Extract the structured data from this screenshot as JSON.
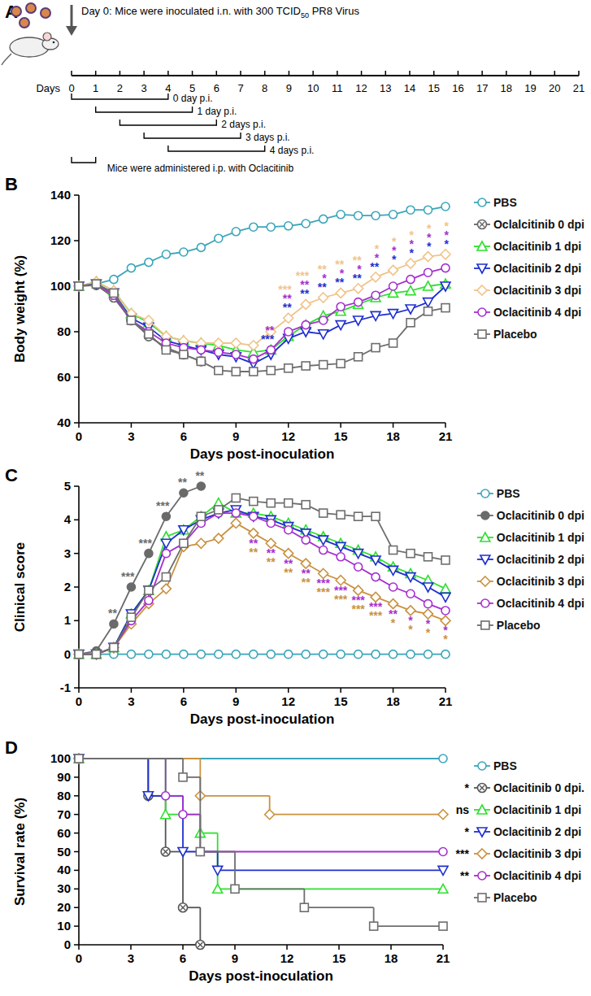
{
  "diagram": {
    "panel": "A",
    "header": "Day 0: Mice were inoculated i.n. with 300 TCID",
    "header_subscript": "50",
    "header_end": " PR8 Virus",
    "axis_label": "Days",
    "days": [
      0,
      1,
      2,
      3,
      4,
      5,
      6,
      7,
      8,
      9,
      10,
      11,
      12,
      13,
      14,
      15,
      16,
      17,
      18,
      19,
      20,
      21
    ],
    "windows": [
      {
        "start": 0,
        "end": 4,
        "label": "0 day p.i."
      },
      {
        "start": 1,
        "end": 5,
        "label": "1 day p.i."
      },
      {
        "start": 2,
        "end": 6,
        "label": "2 days p.i."
      },
      {
        "start": 3,
        "end": 7,
        "label": "3 days p.i."
      },
      {
        "start": 4,
        "end": 8,
        "label": "4 days p.i."
      }
    ],
    "administration": {
      "start": 0,
      "end": 1,
      "label": "Mice were administered i.p. with Oclacitinib"
    }
  },
  "chart_data": [
    {
      "type": "line",
      "panel": "B",
      "ylabel": "Body weight (%)",
      "xlabel": "Days post-inoculation",
      "legend": "right",
      "grid": false,
      "x": [
        0,
        1,
        2,
        3,
        4,
        5,
        6,
        7,
        8,
        9,
        10,
        11,
        12,
        13,
        14,
        15,
        16,
        17,
        18,
        19,
        20,
        21
      ],
      "xlim": [
        0,
        21
      ],
      "xticks": [
        0,
        3,
        6,
        9,
        12,
        15,
        18,
        21
      ],
      "ylim": [
        40,
        140
      ],
      "yticks": [
        40,
        60,
        80,
        100,
        120,
        140
      ],
      "series": [
        {
          "name": "PBS",
          "color": "#3aa6b9",
          "marker": "circle",
          "values": [
            100,
            101,
            103,
            108,
            110.5,
            114,
            115,
            117,
            121,
            124,
            126,
            126,
            126.5,
            127.5,
            129.5,
            131.5,
            131,
            131,
            131.5,
            133.5,
            133.5,
            135
          ]
        },
        {
          "name": "Oclalcitinib 0 dpi",
          "color": "#666666",
          "marker": "circle-x",
          "values": [
            100,
            100.5,
            95,
            85,
            78,
            73,
            70,
            67,
            null,
            null,
            null,
            null,
            null,
            null,
            null,
            null,
            null,
            null,
            null,
            null,
            null,
            null
          ]
        },
        {
          "name": "Oclacitinib 1 dpi",
          "color": "#2ee02e",
          "marker": "triangle",
          "values": [
            100,
            102,
            98,
            88,
            84,
            78,
            76,
            75,
            74,
            72,
            71,
            72,
            78,
            83,
            87,
            89,
            92,
            95,
            97,
            98,
            100,
            101
          ]
        },
        {
          "name": "Oclacitinib 2 dpi",
          "color": "#1f2fd0",
          "marker": "triangle-down",
          "values": [
            100,
            101,
            97,
            86,
            82,
            76,
            74,
            72,
            70,
            69,
            66,
            70,
            77,
            80,
            79,
            83,
            85,
            87,
            88,
            90,
            93,
            100
          ]
        },
        {
          "name": "Oclacitinib 3 dpi",
          "color": "#f0c48a",
          "marker": "diamond",
          "values": [
            100,
            102,
            98,
            88,
            85,
            78,
            76,
            75,
            75,
            75,
            74,
            80,
            86,
            92,
            95,
            97,
            99,
            104,
            107,
            110,
            113,
            114
          ]
        },
        {
          "name": "Oclacitinib 4 dpi",
          "color": "#a52fd0",
          "marker": "circle",
          "values": [
            100,
            101,
            96,
            85,
            80,
            75,
            73,
            72,
            71,
            70,
            68,
            72,
            80,
            83,
            85,
            91,
            93,
            96,
            100,
            103,
            106,
            108
          ]
        },
        {
          "name": "Placebo",
          "color": "#6e6e6e",
          "marker": "square",
          "values": [
            100,
            101,
            97,
            85,
            79,
            72,
            70,
            67,
            63,
            62.5,
            62.5,
            63,
            64,
            65,
            65.5,
            66,
            69,
            73,
            75,
            84,
            89,
            90.5
          ]
        }
      ],
      "annotations": [
        {
          "series": "Oclacitinib 2 dpi",
          "position": "above",
          "x": [
            11,
            12,
            13,
            14,
            15,
            16,
            17,
            18,
            19,
            20,
            21
          ],
          "labels": [
            "***",
            "**",
            "**",
            "**",
            "**",
            "**",
            "**",
            "*",
            "*",
            "*",
            "*"
          ]
        },
        {
          "series": "Oclacitinib 4 dpi",
          "position": "above",
          "x": [
            11,
            12,
            13,
            14,
            15,
            16,
            17,
            18,
            19,
            20,
            21
          ],
          "labels": [
            "**",
            "**",
            "**",
            "*",
            "*",
            "*",
            "*",
            "*",
            "*",
            "*",
            "*"
          ]
        },
        {
          "series": "Oclacitinib 3 dpi",
          "position": "above",
          "x": [
            12,
            13,
            14,
            15,
            16,
            17,
            18,
            19,
            20,
            21
          ],
          "labels": [
            "***",
            "***",
            "**",
            "**",
            "**",
            "*",
            "*",
            "*",
            "*",
            "*"
          ]
        }
      ]
    },
    {
      "type": "line",
      "panel": "C",
      "ylabel": "Clinical score",
      "xlabel": "Days post-inoculation",
      "legend": "right",
      "grid": false,
      "x": [
        0,
        1,
        2,
        3,
        4,
        5,
        6,
        7,
        8,
        9,
        10,
        11,
        12,
        13,
        14,
        15,
        16,
        17,
        18,
        19,
        20,
        21
      ],
      "xlim": [
        0,
        21
      ],
      "xticks": [
        0,
        3,
        6,
        9,
        12,
        15,
        18,
        21
      ],
      "ylim": [
        -1,
        5
      ],
      "yticks": [
        -1,
        0,
        1,
        2,
        3,
        4,
        5
      ],
      "series": [
        {
          "name": "PBS",
          "color": "#3aa6b9",
          "marker": "circle",
          "values": [
            0,
            0,
            0,
            0,
            0,
            0,
            0,
            0,
            0,
            0,
            0,
            0,
            0,
            0,
            0,
            0,
            0,
            0,
            0,
            0,
            0,
            0
          ]
        },
        {
          "name": "Oclacitinib 0 dpi",
          "color": "#6a6a6a",
          "marker": "filled-circle",
          "values": [
            0,
            0.1,
            0.9,
            2,
            3,
            4.1,
            4.8,
            5,
            null,
            null,
            null,
            null,
            null,
            null,
            null,
            null,
            null,
            null,
            null,
            null,
            null,
            null
          ]
        },
        {
          "name": "Oclacitinib 1 dpi",
          "color": "#2ee02e",
          "marker": "triangle",
          "values": [
            0,
            0,
            0.2,
            1.2,
            1.9,
            3.5,
            3.7,
            4.1,
            4.5,
            4.2,
            4.2,
            4.1,
            3.9,
            3.7,
            3.5,
            3.3,
            3.1,
            2.9,
            2.6,
            2.4,
            2.2,
            1.95
          ]
        },
        {
          "name": "Oclacitinib 2 dpi",
          "color": "#1f2fd0",
          "marker": "triangle-down",
          "values": [
            0,
            0,
            0.2,
            1.2,
            1.9,
            3.3,
            3.7,
            4.0,
            4.2,
            4.3,
            4.1,
            4.0,
            3.8,
            3.6,
            3.4,
            3.2,
            3.0,
            2.8,
            2.5,
            2.3,
            2.0,
            1.7
          ]
        },
        {
          "name": "Oclacitinib 3 dpi",
          "color": "#c9923f",
          "marker": "diamond",
          "values": [
            0,
            0,
            0.2,
            0.9,
            1.5,
            1.95,
            3.2,
            3.3,
            3.45,
            3.9,
            3.6,
            3.3,
            3.0,
            2.7,
            2.4,
            2.2,
            1.9,
            1.7,
            1.5,
            1.3,
            1.2,
            1.0
          ]
        },
        {
          "name": "Oclacitinib 4 dpi",
          "color": "#a52fd0",
          "marker": "circle",
          "values": [
            0,
            0,
            0.2,
            1.0,
            1.6,
            3.0,
            3.3,
            3.9,
            4.2,
            4.2,
            4.1,
            3.9,
            3.7,
            3.4,
            3.1,
            2.9,
            2.6,
            2.3,
            2.0,
            1.8,
            1.5,
            1.3
          ]
        },
        {
          "name": "Placebo",
          "color": "#6e6e6e",
          "marker": "square",
          "values": [
            0,
            0,
            0.2,
            1.1,
            1.9,
            2.3,
            3.3,
            4.1,
            4.3,
            4.65,
            4.55,
            4.5,
            4.5,
            4.45,
            4.2,
            4.15,
            4.1,
            4.1,
            3.1,
            3.0,
            2.9,
            2.8
          ]
        }
      ],
      "annotations": [
        {
          "series": "Oclacitinib 0 dpi",
          "position": "above",
          "x": [
            2,
            3,
            4,
            5,
            6,
            7
          ],
          "labels": [
            "**",
            "***",
            "***",
            "***",
            "**",
            "**"
          ]
        },
        {
          "series": "Oclacitinib 4 dpi",
          "position": "below",
          "x": [
            10,
            11,
            12,
            13,
            14,
            15,
            16,
            17,
            18,
            19,
            20,
            21
          ],
          "labels": [
            "**",
            "**",
            "**",
            "**",
            "***",
            "***",
            "***",
            "***",
            "**",
            "*",
            "*",
            "*"
          ]
        },
        {
          "series": "Oclacitinib 3 dpi",
          "position": "below",
          "x": [
            10,
            11,
            12,
            13,
            14,
            15,
            16,
            17,
            18,
            19,
            20,
            21
          ],
          "labels": [
            "**",
            "**",
            "**",
            "**",
            "***",
            "***",
            "***",
            "***",
            "*",
            "*",
            "*",
            "*"
          ]
        }
      ]
    },
    {
      "type": "step",
      "panel": "D",
      "ylabel": "Survival rate (%)",
      "xlabel": "Days post-inoculation",
      "legend": "right",
      "grid": false,
      "xlim": [
        0,
        21
      ],
      "xticks": [
        0,
        3,
        6,
        9,
        12,
        15,
        18,
        21
      ],
      "ylim": [
        0,
        100
      ],
      "yticks": [
        0,
        10,
        20,
        30,
        40,
        50,
        60,
        70,
        80,
        90,
        100
      ],
      "series": [
        {
          "name": "PBS",
          "color": "#3aa6b9",
          "marker": "circle",
          "x": [
            0,
            21
          ],
          "values": [
            100,
            100
          ]
        },
        {
          "name": "Oclacitinib 0 dpi.",
          "color": "#555555",
          "marker": "circle-x",
          "significance": "*",
          "x": [
            0,
            4,
            5,
            6,
            7
          ],
          "values": [
            100,
            80,
            50,
            20,
            0
          ]
        },
        {
          "name": "Oclacitinib 1 dpi",
          "color": "#2ee02e",
          "marker": "triangle",
          "significance": "ns",
          "x": [
            0,
            5,
            7,
            8,
            21
          ],
          "values": [
            100,
            70,
            60,
            30,
            30
          ]
        },
        {
          "name": "Oclacitinib 2 dpi",
          "color": "#1f2fd0",
          "marker": "triangle-down",
          "significance": "*",
          "x": [
            0,
            4,
            6,
            8,
            21
          ],
          "values": [
            100,
            80,
            50,
            40,
            40
          ]
        },
        {
          "name": "Oclacitinib 3 dpi",
          "color": "#c9923f",
          "marker": "diamond",
          "significance": "***",
          "x": [
            0,
            7,
            11,
            21
          ],
          "values": [
            100,
            80,
            70,
            70
          ]
        },
        {
          "name": "Oclacitinib 4 dpi",
          "color": "#a52fd0",
          "marker": "circle",
          "significance": "**",
          "x": [
            0,
            5,
            6,
            7,
            21
          ],
          "values": [
            100,
            80,
            70,
            50,
            50
          ]
        },
        {
          "name": "Placebo",
          "color": "#6e6e6e",
          "marker": "square",
          "x": [
            0,
            6,
            7,
            9,
            13,
            17,
            21
          ],
          "values": [
            100,
            90,
            50,
            30,
            20,
            10,
            10
          ]
        }
      ]
    }
  ]
}
